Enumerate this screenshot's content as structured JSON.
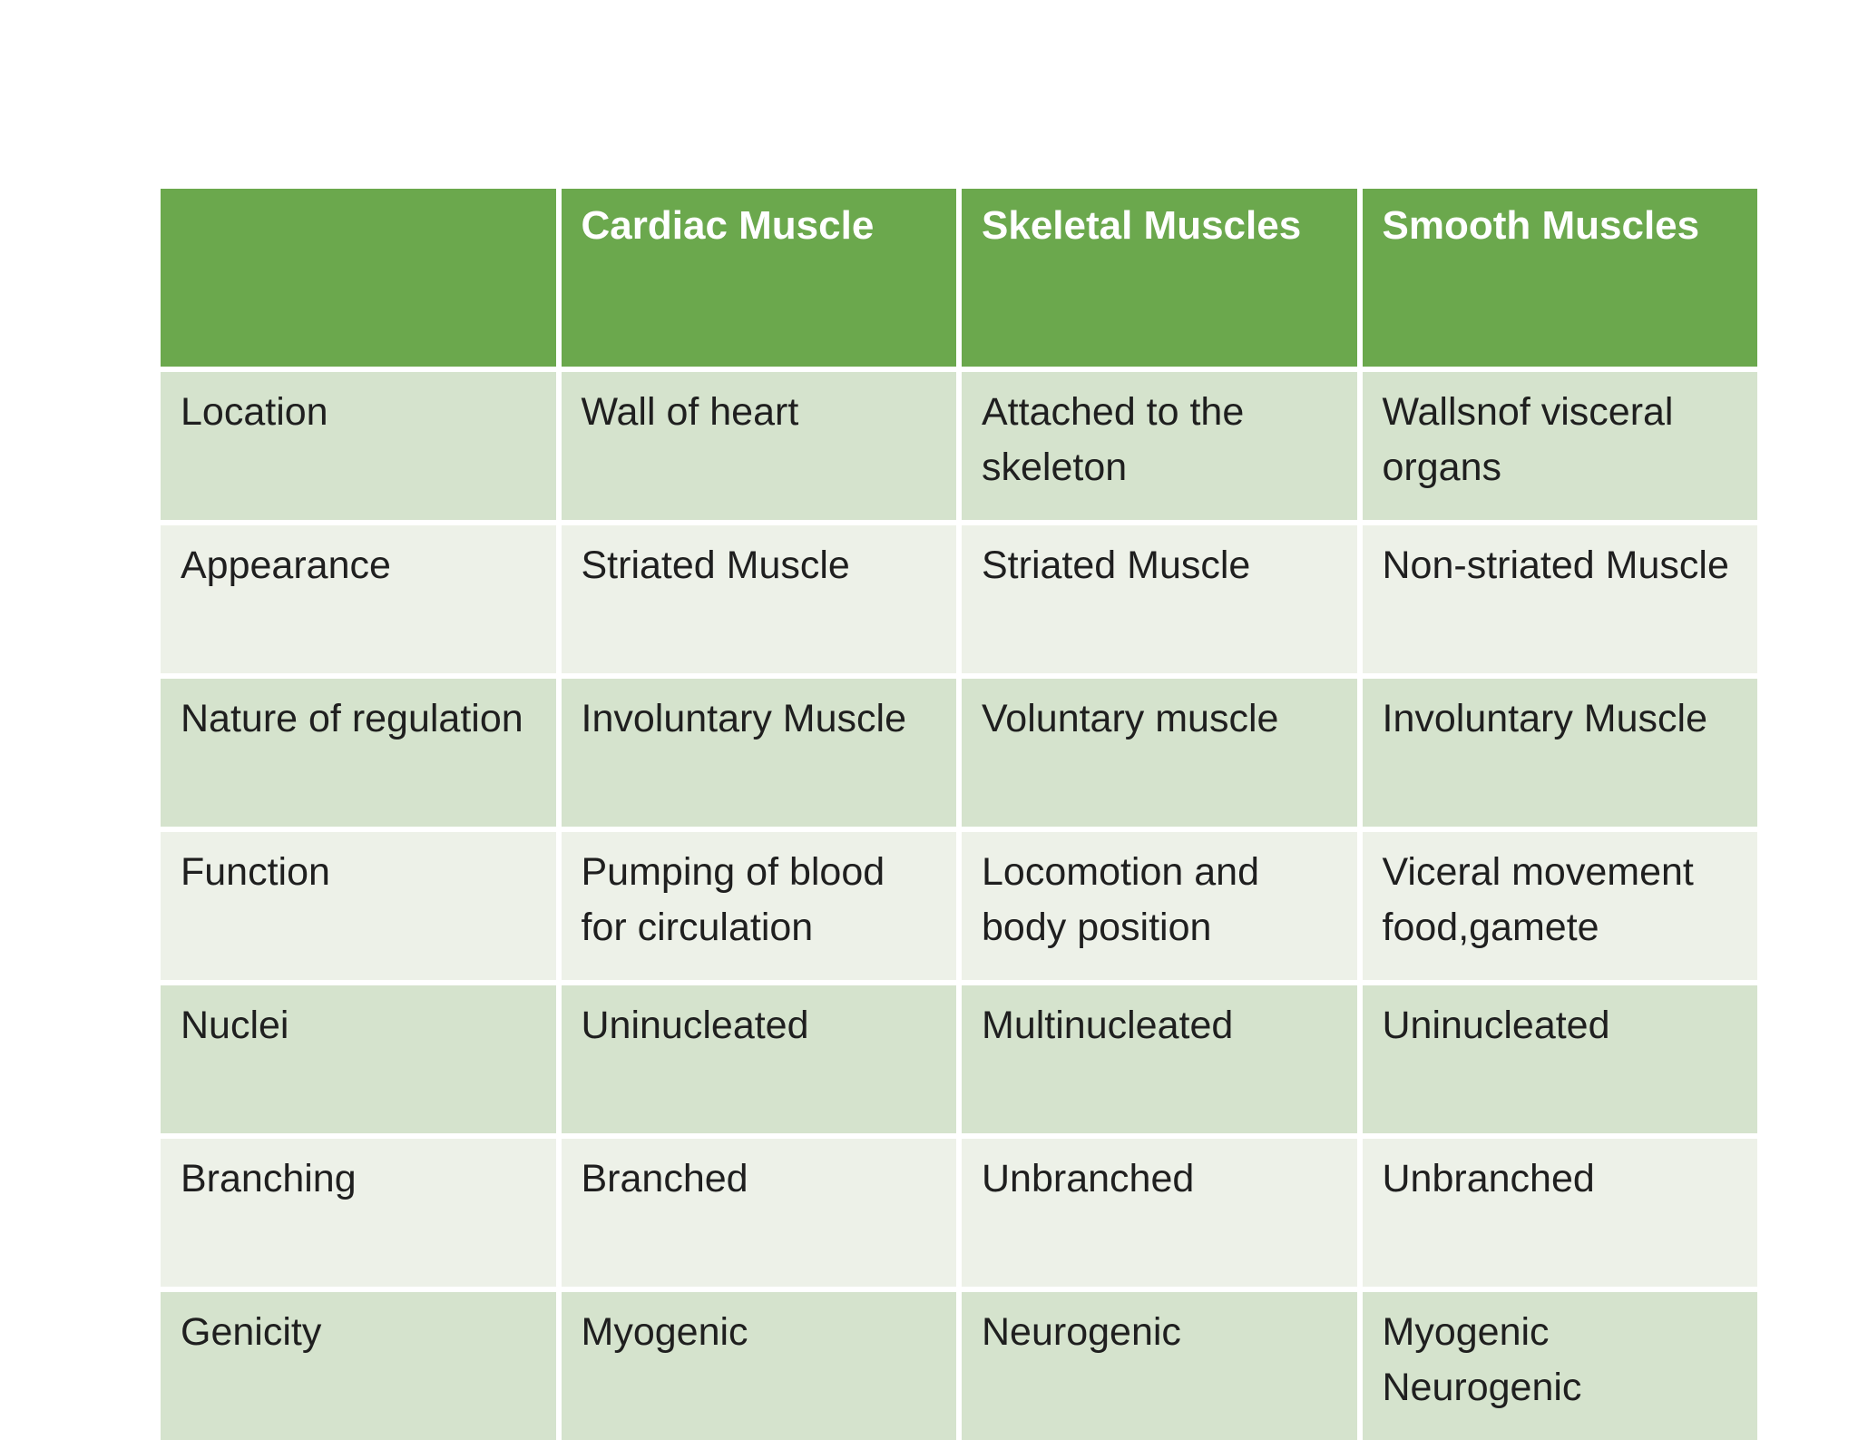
{
  "table": {
    "corner": "",
    "columns": [
      "Cardiac Muscle",
      "Skeletal Muscles",
      "Smooth Muscles"
    ],
    "rows": [
      {
        "label": "Location",
        "cells": [
          "Wall of heart",
          "Attached to the skeleton",
          "Wallsnof visceral organs"
        ]
      },
      {
        "label": "Appearance",
        "cells": [
          "Striated Muscle",
          "Striated Muscle",
          "Non-striated Muscle"
        ]
      },
      {
        "label": "Nature of regulation",
        "cells": [
          "Involuntary Muscle",
          "Voluntary muscle",
          "Involuntary Muscle"
        ]
      },
      {
        "label": "Function",
        "cells": [
          "Pumping of blood for circulation",
          "Locomotion and body position",
          "Viceral movement food,gamete"
        ]
      },
      {
        "label": "Nuclei",
        "cells": [
          "Uninucleated",
          "Multinucleated",
          "Uninucleated"
        ]
      },
      {
        "label": "Branching",
        "cells": [
          "Branched",
          "Unbranched",
          "Unbranched"
        ]
      },
      {
        "label": "Genicity",
        "cells": [
          "Myogenic",
          "Neurogenic",
          "Myogenic Neurogenic"
        ]
      }
    ],
    "colors": {
      "header_bg": "#6ba84d",
      "header_text": "#ffffff",
      "row_dark_bg": "#d5e3cd",
      "row_light_bg": "#edf1e8",
      "body_text": "#1f1f1f",
      "page_bg": "#ffffff"
    }
  }
}
